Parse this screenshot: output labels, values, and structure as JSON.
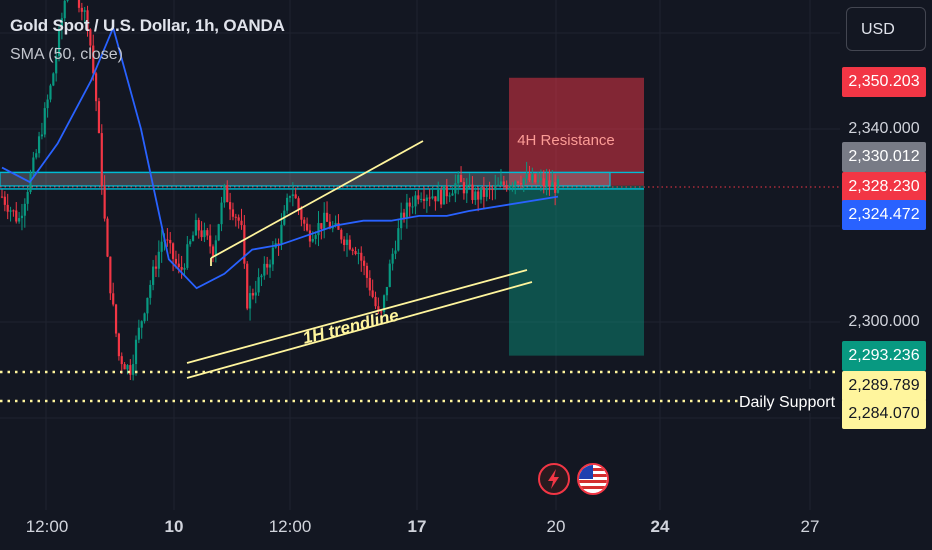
{
  "header": {
    "title": "Gold Spot / U.S. Dollar, 1h, OANDA",
    "indicator": "SMA (50, close)"
  },
  "currency_button": "USD",
  "price_axis": {
    "ticks": [
      "2,340.000",
      "2,300.000"
    ],
    "labels": [
      {
        "text": "2,350.203",
        "bg": "#f23645",
        "fg": "#ffffff"
      },
      {
        "text": "2,330.012",
        "bg": "#787b86",
        "fg": "#ffffff"
      },
      {
        "text": "2,328.230",
        "bg": "#f23645",
        "fg": "#ffffff"
      },
      {
        "text": "2,324.472",
        "bg": "#2962ff",
        "fg": "#ffffff"
      },
      {
        "text": "2,293.236",
        "bg": "#089981",
        "fg": "#ffffff"
      },
      {
        "text": "2,289.789",
        "bg": "#fff59d",
        "fg": "#131722"
      },
      {
        "text": "2,284.070",
        "bg": "#fff59d",
        "fg": "#131722"
      }
    ]
  },
  "time_axis": [
    {
      "text": "12:00",
      "bold": false
    },
    {
      "text": "10",
      "bold": true
    },
    {
      "text": "12:00",
      "bold": false
    },
    {
      "text": "17",
      "bold": true
    },
    {
      "text": "20",
      "bold": false
    },
    {
      "text": "24",
      "bold": true
    },
    {
      "text": "27",
      "bold": false
    }
  ],
  "annotations": {
    "resistance": "4H Resistance",
    "trendline": "1H trendline",
    "support": "Daily Support"
  },
  "events": [
    {
      "icon": "lightning-icon",
      "color": "#f23645"
    },
    {
      "icon": "us-flag-icon",
      "color": "#f23645"
    }
  ],
  "colors": {
    "background": "#131722",
    "up": "#089981",
    "down": "#f23645",
    "sma": "#2962ff",
    "annotation": "#fff59d",
    "zone": "#00bcd4"
  },
  "chart_data": {
    "type": "candlestick",
    "symbol": "Gold Spot / U.S. Dollar",
    "interval": "1h",
    "source": "OANDA",
    "y_range": [
      2272,
      2362
    ],
    "y_ticks": [
      2300,
      2340
    ],
    "x_ticks": [
      "12:00",
      "10",
      "12:00",
      "17",
      "20",
      "24",
      "27"
    ],
    "current_price": 2328.23,
    "close_path": [
      {
        "x": 0,
        "y": 2326
      },
      {
        "x": 0.03,
        "y": 2321
      },
      {
        "x": 0.06,
        "y": 2334
      },
      {
        "x": 0.09,
        "y": 2350
      },
      {
        "x": 0.12,
        "y": 2372
      },
      {
        "x": 0.155,
        "y": 2362
      },
      {
        "x": 0.17,
        "y": 2345
      },
      {
        "x": 0.19,
        "y": 2312
      },
      {
        "x": 0.21,
        "y": 2293
      },
      {
        "x": 0.23,
        "y": 2290
      },
      {
        "x": 0.26,
        "y": 2305
      },
      {
        "x": 0.29,
        "y": 2318
      },
      {
        "x": 0.32,
        "y": 2310
      },
      {
        "x": 0.35,
        "y": 2320
      },
      {
        "x": 0.38,
        "y": 2315
      },
      {
        "x": 0.4,
        "y": 2327
      },
      {
        "x": 0.43,
        "y": 2320
      },
      {
        "x": 0.44,
        "y": 2304
      },
      {
        "x": 0.47,
        "y": 2310
      },
      {
        "x": 0.5,
        "y": 2318
      },
      {
        "x": 0.52,
        "y": 2328
      },
      {
        "x": 0.55,
        "y": 2318
      },
      {
        "x": 0.58,
        "y": 2321
      },
      {
        "x": 0.61,
        "y": 2318
      },
      {
        "x": 0.64,
        "y": 2315
      },
      {
        "x": 0.66,
        "y": 2308
      },
      {
        "x": 0.68,
        "y": 2300
      },
      {
        "x": 0.7,
        "y": 2313
      },
      {
        "x": 0.72,
        "y": 2322
      },
      {
        "x": 0.75,
        "y": 2327
      },
      {
        "x": 0.79,
        "y": 2326
      },
      {
        "x": 0.82,
        "y": 2329
      },
      {
        "x": 0.85,
        "y": 2326
      },
      {
        "x": 0.88,
        "y": 2327
      },
      {
        "x": 0.91,
        "y": 2329
      },
      {
        "x": 0.93,
        "y": 2330
      },
      {
        "x": 0.96,
        "y": 2329
      },
      {
        "x": 1,
        "y": 2328
      }
    ],
    "sma_path": [
      {
        "x": 0,
        "y": 2332
      },
      {
        "x": 0.05,
        "y": 2329
      },
      {
        "x": 0.1,
        "y": 2337
      },
      {
        "x": 0.16,
        "y": 2350
      },
      {
        "x": 0.2,
        "y": 2361
      },
      {
        "x": 0.25,
        "y": 2340
      },
      {
        "x": 0.3,
        "y": 2313
      },
      {
        "x": 0.35,
        "y": 2307
      },
      {
        "x": 0.4,
        "y": 2310
      },
      {
        "x": 0.45,
        "y": 2315
      },
      {
        "x": 0.5,
        "y": 2316
      },
      {
        "x": 0.55,
        "y": 2318
      },
      {
        "x": 0.6,
        "y": 2320
      },
      {
        "x": 0.65,
        "y": 2321
      },
      {
        "x": 0.7,
        "y": 2321
      },
      {
        "x": 0.75,
        "y": 2322
      },
      {
        "x": 0.8,
        "y": 2322
      },
      {
        "x": 0.84,
        "y": 2323
      },
      {
        "x": 1,
        "y": 2326
      }
    ],
    "resistance_zone": [
      2328.2,
      2331
    ],
    "support_levels": [
      2289.789,
      2284.07
    ],
    "target_price": 2350.203,
    "stop_level": 2293.236
  }
}
